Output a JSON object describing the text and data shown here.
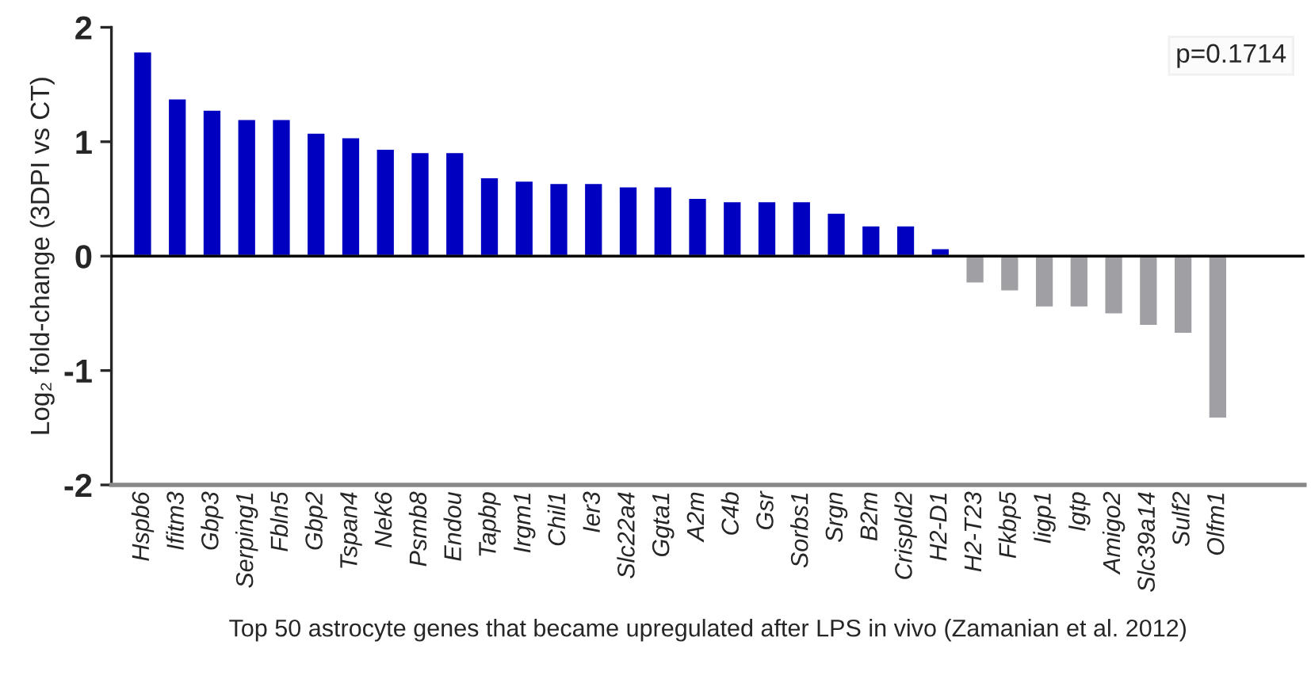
{
  "chart_data": {
    "type": "bar",
    "ylabel": "Log₂ fold-change (3DPI vs CT)",
    "xlabel": "Top 50 astrocyte genes that became upregulated after LPS in vivo (Zamanian et al. 2012)",
    "categories": [
      "Hspb6",
      "Ifitm3",
      "Gbp3",
      "Serping1",
      "Fbln5",
      "Gbp2",
      "Tspan4",
      "Nek6",
      "Psmb8",
      "Endou",
      "Tapbp",
      "Irgm1",
      "Chil1",
      "Ier3",
      "Slc22a4",
      "Ggta1",
      "A2m",
      "C4b",
      "Gsr",
      "Sorbs1",
      "Srgn",
      "B2m",
      "Crispld2",
      "H2-D1",
      "H2-T23",
      "Fkbp5",
      "Iigp1",
      "Igtp",
      "Amigo2",
      "Slc39a14",
      "Sulf2",
      "Olfm1"
    ],
    "values": [
      1.79,
      1.38,
      1.28,
      1.2,
      1.2,
      1.08,
      1.04,
      0.94,
      0.91,
      0.91,
      0.69,
      0.66,
      0.64,
      0.64,
      0.61,
      0.61,
      0.51,
      0.48,
      0.48,
      0.48,
      0.38,
      0.27,
      0.27,
      0.07,
      -0.24,
      -0.31,
      -0.45,
      -0.45,
      -0.51,
      -0.61,
      -0.68,
      -1.42
    ],
    "colors": [
      "#0000c0",
      "#0000c0",
      "#0000c0",
      "#0000c0",
      "#0000c0",
      "#0000c0",
      "#0000c0",
      "#0000c0",
      "#0000c0",
      "#0000c0",
      "#0000c0",
      "#0000c0",
      "#0000c0",
      "#0000c0",
      "#0000c0",
      "#0000c0",
      "#0000c0",
      "#0000c0",
      "#0000c0",
      "#0000c0",
      "#0000c0",
      "#0000c0",
      "#0000c0",
      "#0000c0",
      "#a0a0a4",
      "#a0a0a4",
      "#a0a0a4",
      "#a0a0a4",
      "#a0a0a4",
      "#a0a0a4",
      "#a0a0a4",
      "#a0a0a4"
    ],
    "ylim": [
      -2,
      2
    ],
    "yticks": [
      -2,
      -1,
      0,
      1,
      2
    ],
    "ref_lines": [
      {
        "axis": "y",
        "value": 0,
        "label": null,
        "color": "#000000"
      }
    ],
    "annotations": [
      "p=0.1714"
    ],
    "grid": false,
    "legend": false
  }
}
